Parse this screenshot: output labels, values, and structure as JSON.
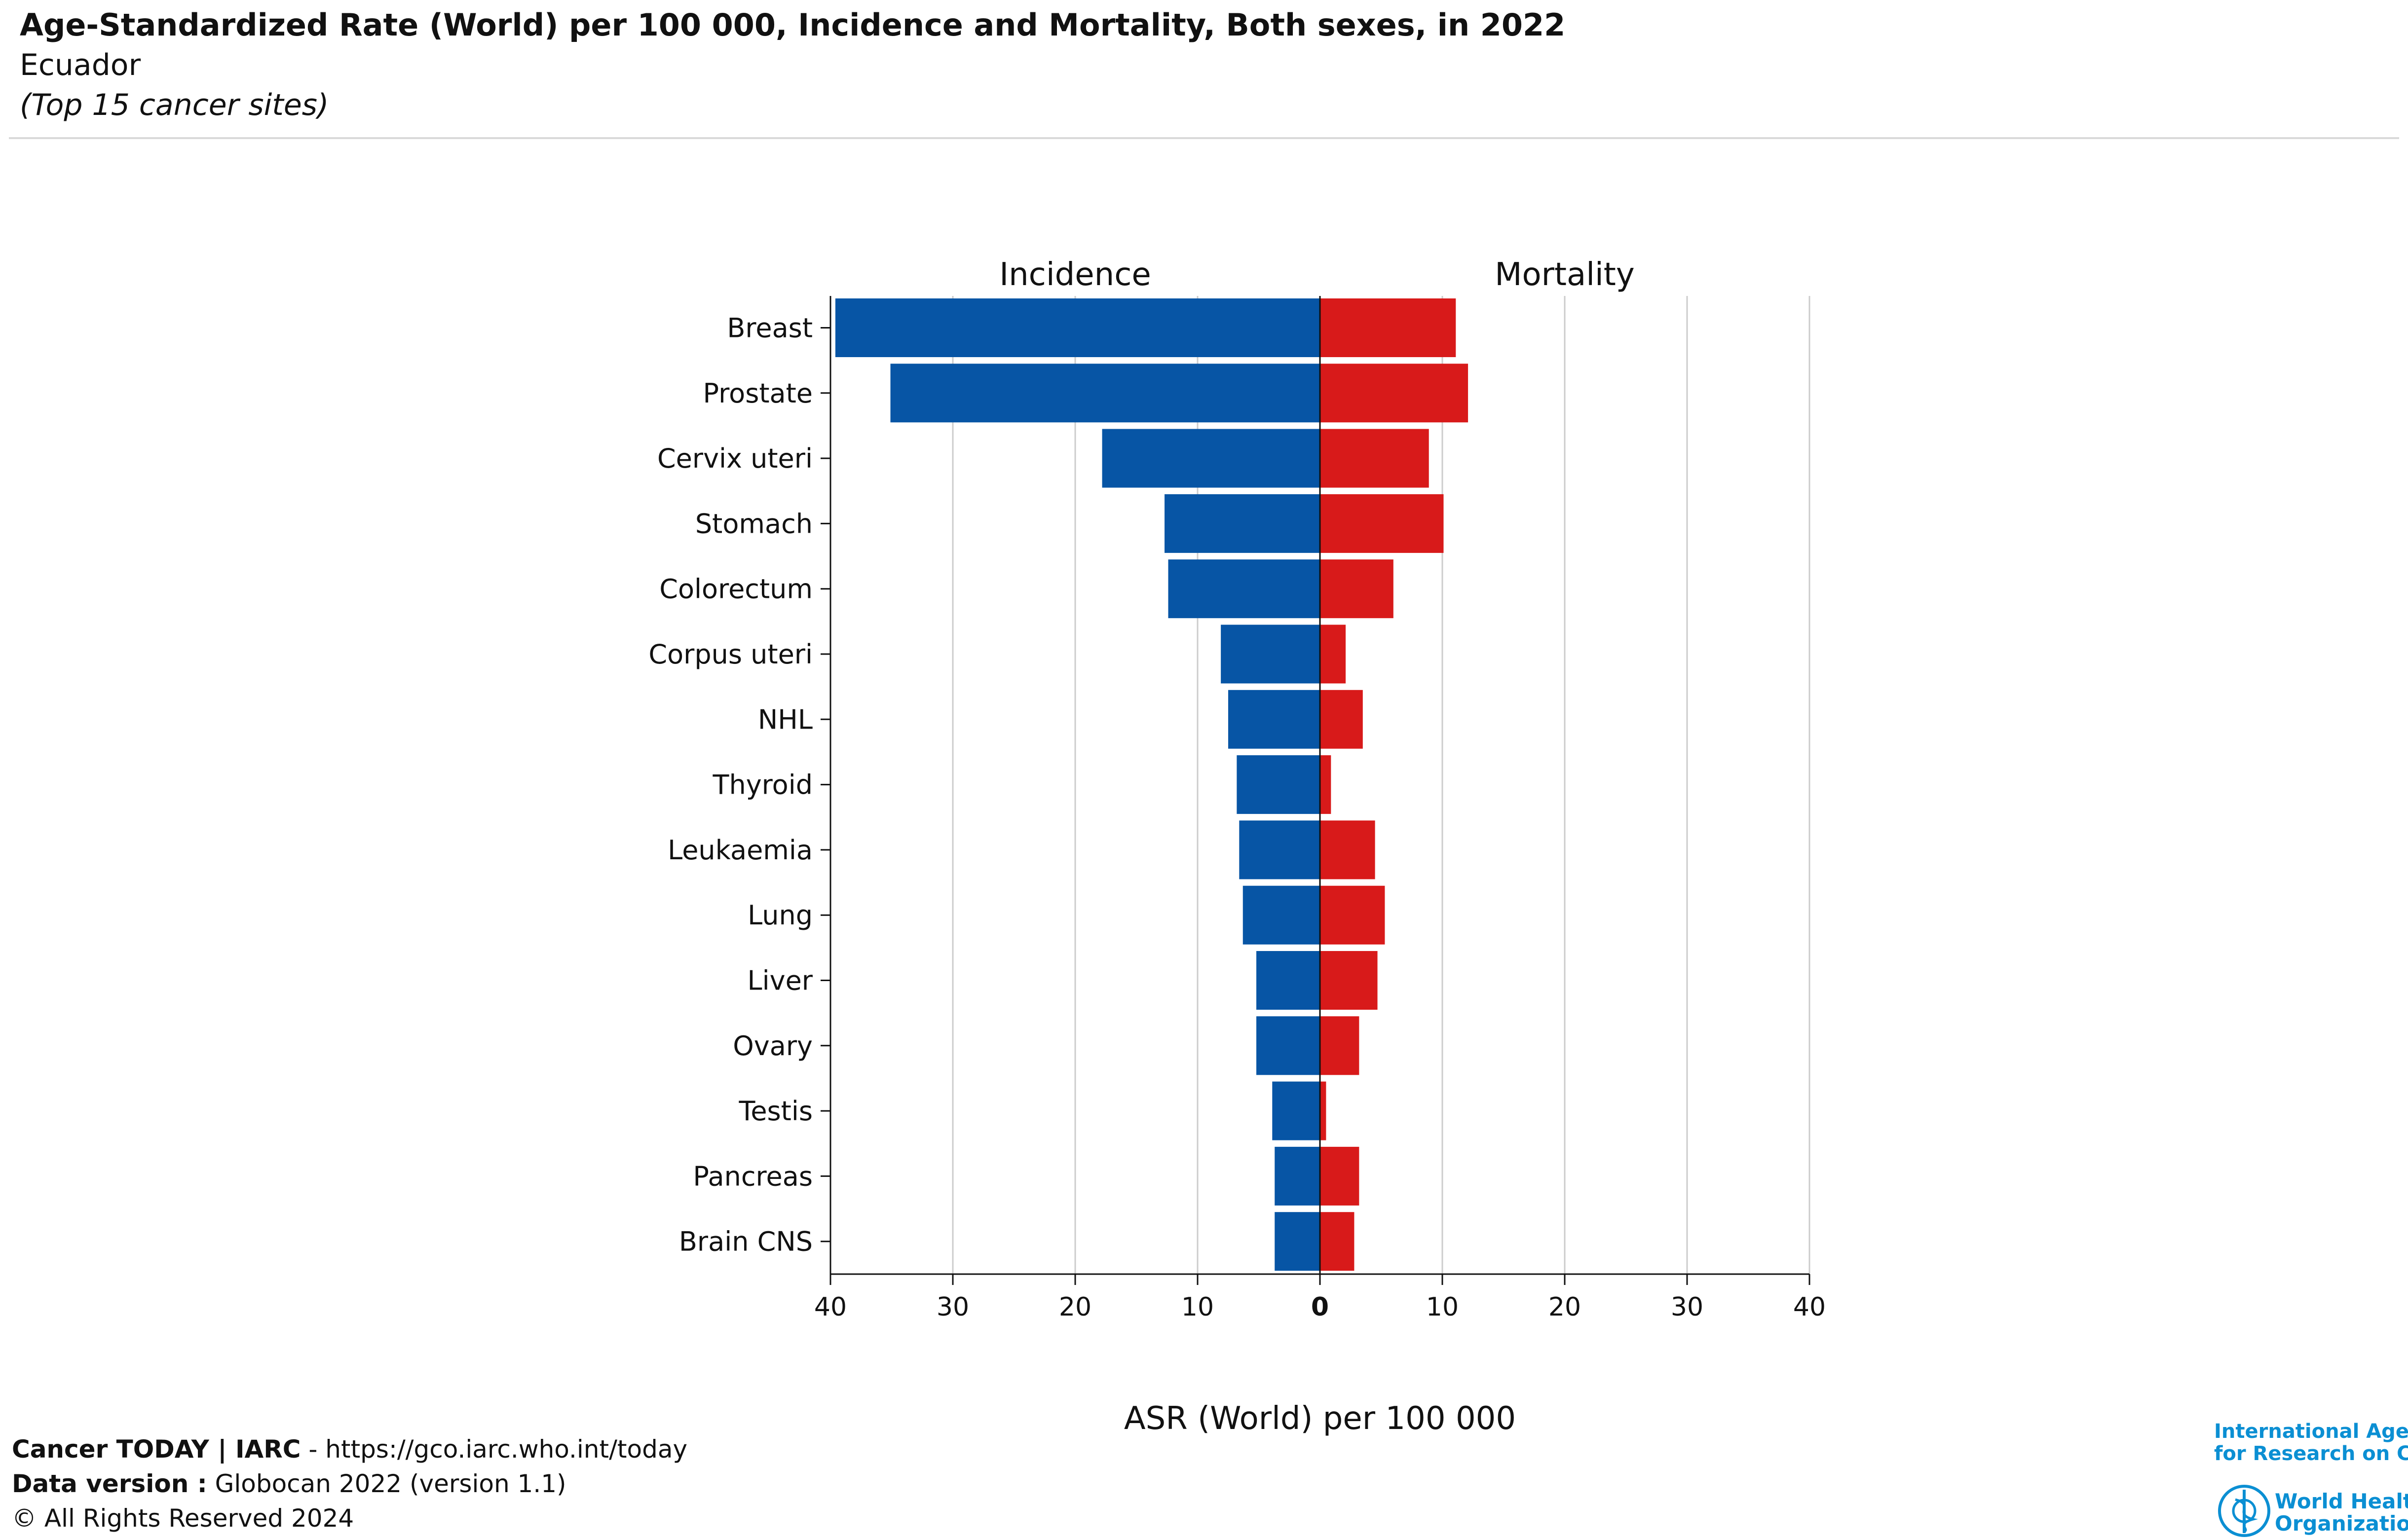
{
  "header": {
    "title": "Age-Standardized Rate (World) per 100 000, Incidence and Mortality, Both sexes, in 2022",
    "subtitle": "Ecuador",
    "note": "(Top 15 cancer sites)"
  },
  "footer": {
    "line1_bold": "Cancer TODAY | IARC",
    "line1_rest": " - https://gco.iarc.who.int/today",
    "line2_bold": "Data version :",
    "line2_rest": " Globocan 2022 (version 1.1)",
    "line3": "© All Rights Reserved 2024"
  },
  "logos": {
    "iarc_line1": "International Agency",
    "iarc_line2": "for Research on Cancer",
    "who_line1": "World Health",
    "who_line2": "Organization"
  },
  "colors": {
    "incidence": "#0755a5",
    "mortality": "#d81a1a",
    "grid": "#cccccc",
    "logo_blue": "#0b8fd3"
  },
  "chart_data": {
    "type": "bar",
    "orientation": "horizontal",
    "panel_labels": [
      "Incidence",
      "Mortality"
    ],
    "xlabel": "ASR (World) per 100 000",
    "xlim": [
      0,
      40
    ],
    "xticks": [
      40,
      30,
      20,
      10,
      0,
      10,
      20,
      30,
      40
    ],
    "grid": true,
    "categories": [
      "Breast",
      "Prostate",
      "Cervix uteri",
      "Stomach",
      "Colorectum",
      "Corpus uteri",
      "NHL",
      "Thyroid",
      "Leukaemia",
      "Lung",
      "Liver",
      "Ovary",
      "Testis",
      "Pancreas",
      "Brain CNS"
    ],
    "series": [
      {
        "name": "Incidence",
        "values": [
          39.6,
          35.1,
          17.8,
          12.7,
          12.4,
          8.1,
          7.5,
          6.8,
          6.6,
          6.3,
          5.2,
          5.2,
          3.9,
          3.7,
          3.7
        ]
      },
      {
        "name": "Mortality",
        "values": [
          11.1,
          12.1,
          8.9,
          10.1,
          6.0,
          2.1,
          3.5,
          0.9,
          4.5,
          5.3,
          4.7,
          3.2,
          0.5,
          3.2,
          2.8
        ]
      }
    ]
  }
}
